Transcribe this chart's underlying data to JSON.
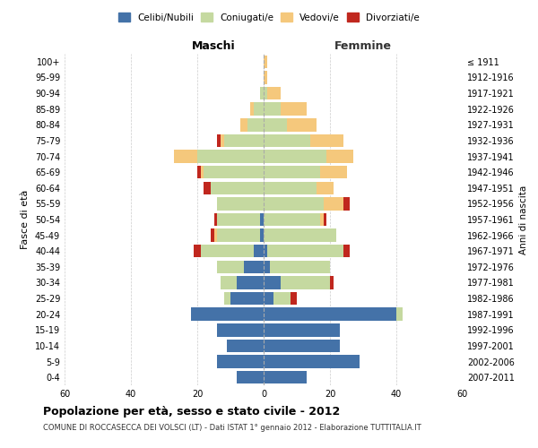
{
  "age_groups": [
    "0-4",
    "5-9",
    "10-14",
    "15-19",
    "20-24",
    "25-29",
    "30-34",
    "35-39",
    "40-44",
    "45-49",
    "50-54",
    "55-59",
    "60-64",
    "65-69",
    "70-74",
    "75-79",
    "80-84",
    "85-89",
    "90-94",
    "95-99",
    "100+"
  ],
  "birth_years": [
    "2007-2011",
    "2002-2006",
    "1997-2001",
    "1992-1996",
    "1987-1991",
    "1982-1986",
    "1977-1981",
    "1972-1976",
    "1967-1971",
    "1962-1966",
    "1957-1961",
    "1952-1956",
    "1947-1951",
    "1942-1946",
    "1937-1941",
    "1932-1936",
    "1927-1931",
    "1922-1926",
    "1917-1921",
    "1912-1916",
    "≤ 1911"
  ],
  "maschi": {
    "celibi": [
      8,
      14,
      11,
      14,
      22,
      10,
      8,
      6,
      3,
      1,
      1,
      0,
      0,
      0,
      0,
      0,
      0,
      0,
      0,
      0,
      0
    ],
    "coniugati": [
      0,
      0,
      0,
      0,
      0,
      2,
      5,
      8,
      16,
      13,
      13,
      14,
      16,
      18,
      20,
      12,
      5,
      3,
      1,
      0,
      0
    ],
    "vedovi": [
      0,
      0,
      0,
      0,
      0,
      0,
      0,
      0,
      0,
      1,
      0,
      0,
      0,
      1,
      7,
      1,
      2,
      1,
      0,
      0,
      0
    ],
    "divorziati": [
      0,
      0,
      0,
      0,
      0,
      0,
      0,
      0,
      2,
      1,
      1,
      0,
      2,
      1,
      0,
      1,
      0,
      0,
      0,
      0,
      0
    ]
  },
  "femmine": {
    "nubili": [
      13,
      29,
      23,
      23,
      40,
      3,
      5,
      2,
      1,
      0,
      0,
      0,
      0,
      0,
      0,
      0,
      0,
      0,
      0,
      0,
      0
    ],
    "coniugate": [
      0,
      0,
      0,
      0,
      2,
      5,
      15,
      18,
      23,
      22,
      17,
      18,
      16,
      17,
      19,
      14,
      7,
      5,
      1,
      0,
      0
    ],
    "vedove": [
      0,
      0,
      0,
      0,
      0,
      0,
      0,
      0,
      0,
      0,
      1,
      6,
      5,
      8,
      8,
      10,
      9,
      8,
      4,
      1,
      1
    ],
    "divorziate": [
      0,
      0,
      0,
      0,
      0,
      2,
      1,
      0,
      2,
      0,
      1,
      2,
      0,
      0,
      0,
      0,
      0,
      0,
      0,
      0,
      0
    ]
  },
  "colors": {
    "celibi_nubili": "#4472a8",
    "coniugati": "#c5d9a0",
    "vedovi": "#f5c87c",
    "divorziati": "#c0271e"
  },
  "title": "Popolazione per età, sesso e stato civile - 2012",
  "subtitle": "COMUNE DI ROCCASECCA DEI VOLSCI (LT) - Dati ISTAT 1° gennaio 2012 - Elaborazione TUTTITALIA.IT",
  "xlabel_left": "Maschi",
  "xlabel_right": "Femmine",
  "ylabel": "Fasce di età",
  "ylabel_right": "Anni di nascita",
  "xlim": 60,
  "legend_labels": [
    "Celibi/Nubili",
    "Coniugati/e",
    "Vedovi/e",
    "Divorziati/e"
  ],
  "background_color": "#ffffff"
}
